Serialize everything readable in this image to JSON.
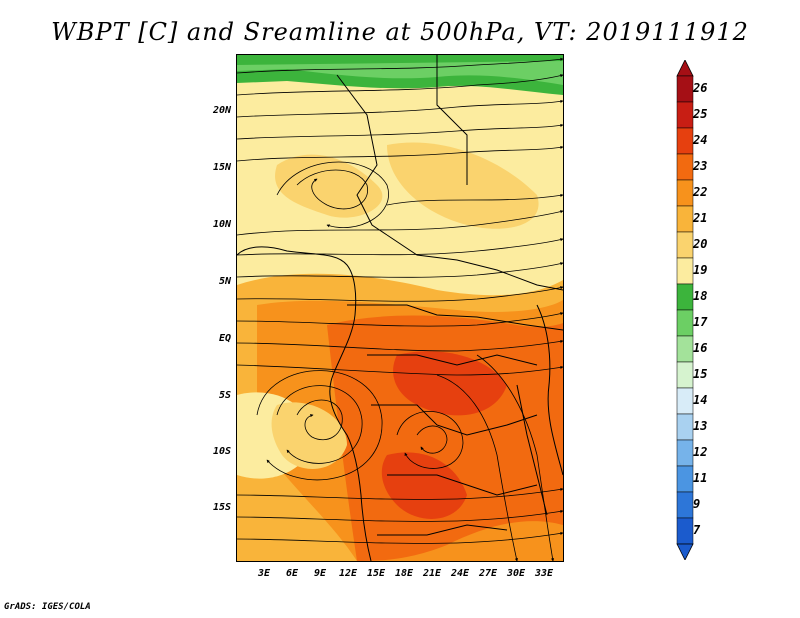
{
  "title": "WBPT [C] and Sreamline at 500hPa, VT: 2019111912",
  "footer": "GrADS: IGES/COLA",
  "lat_labels": [
    "20N",
    "15N",
    "10N",
    "5N",
    "EQ",
    "5S",
    "10S",
    "15S"
  ],
  "lon_labels": [
    "3E",
    "6E",
    "9E",
    "12E",
    "15E",
    "18E",
    "21E",
    "24E",
    "27E",
    "30E",
    "33E"
  ],
  "colorbar": {
    "labels": [
      "26",
      "25",
      "24",
      "23",
      "22",
      "21",
      "20",
      "19",
      "18",
      "17",
      "16",
      "15",
      "14",
      "13",
      "12",
      "11",
      "9",
      "7"
    ],
    "colors": [
      "#a50f15",
      "#c81e14",
      "#e6400f",
      "#f26a10",
      "#f7921c",
      "#f9b43a",
      "#fad36e",
      "#fcec9f",
      "#3cb43c",
      "#6ccf64",
      "#a3e29a",
      "#d6f3cf",
      "#d8ecf8",
      "#a9d1f0",
      "#76b3ea",
      "#4b95e2",
      "#2d76d8",
      "#1b5bcd"
    ]
  }
}
